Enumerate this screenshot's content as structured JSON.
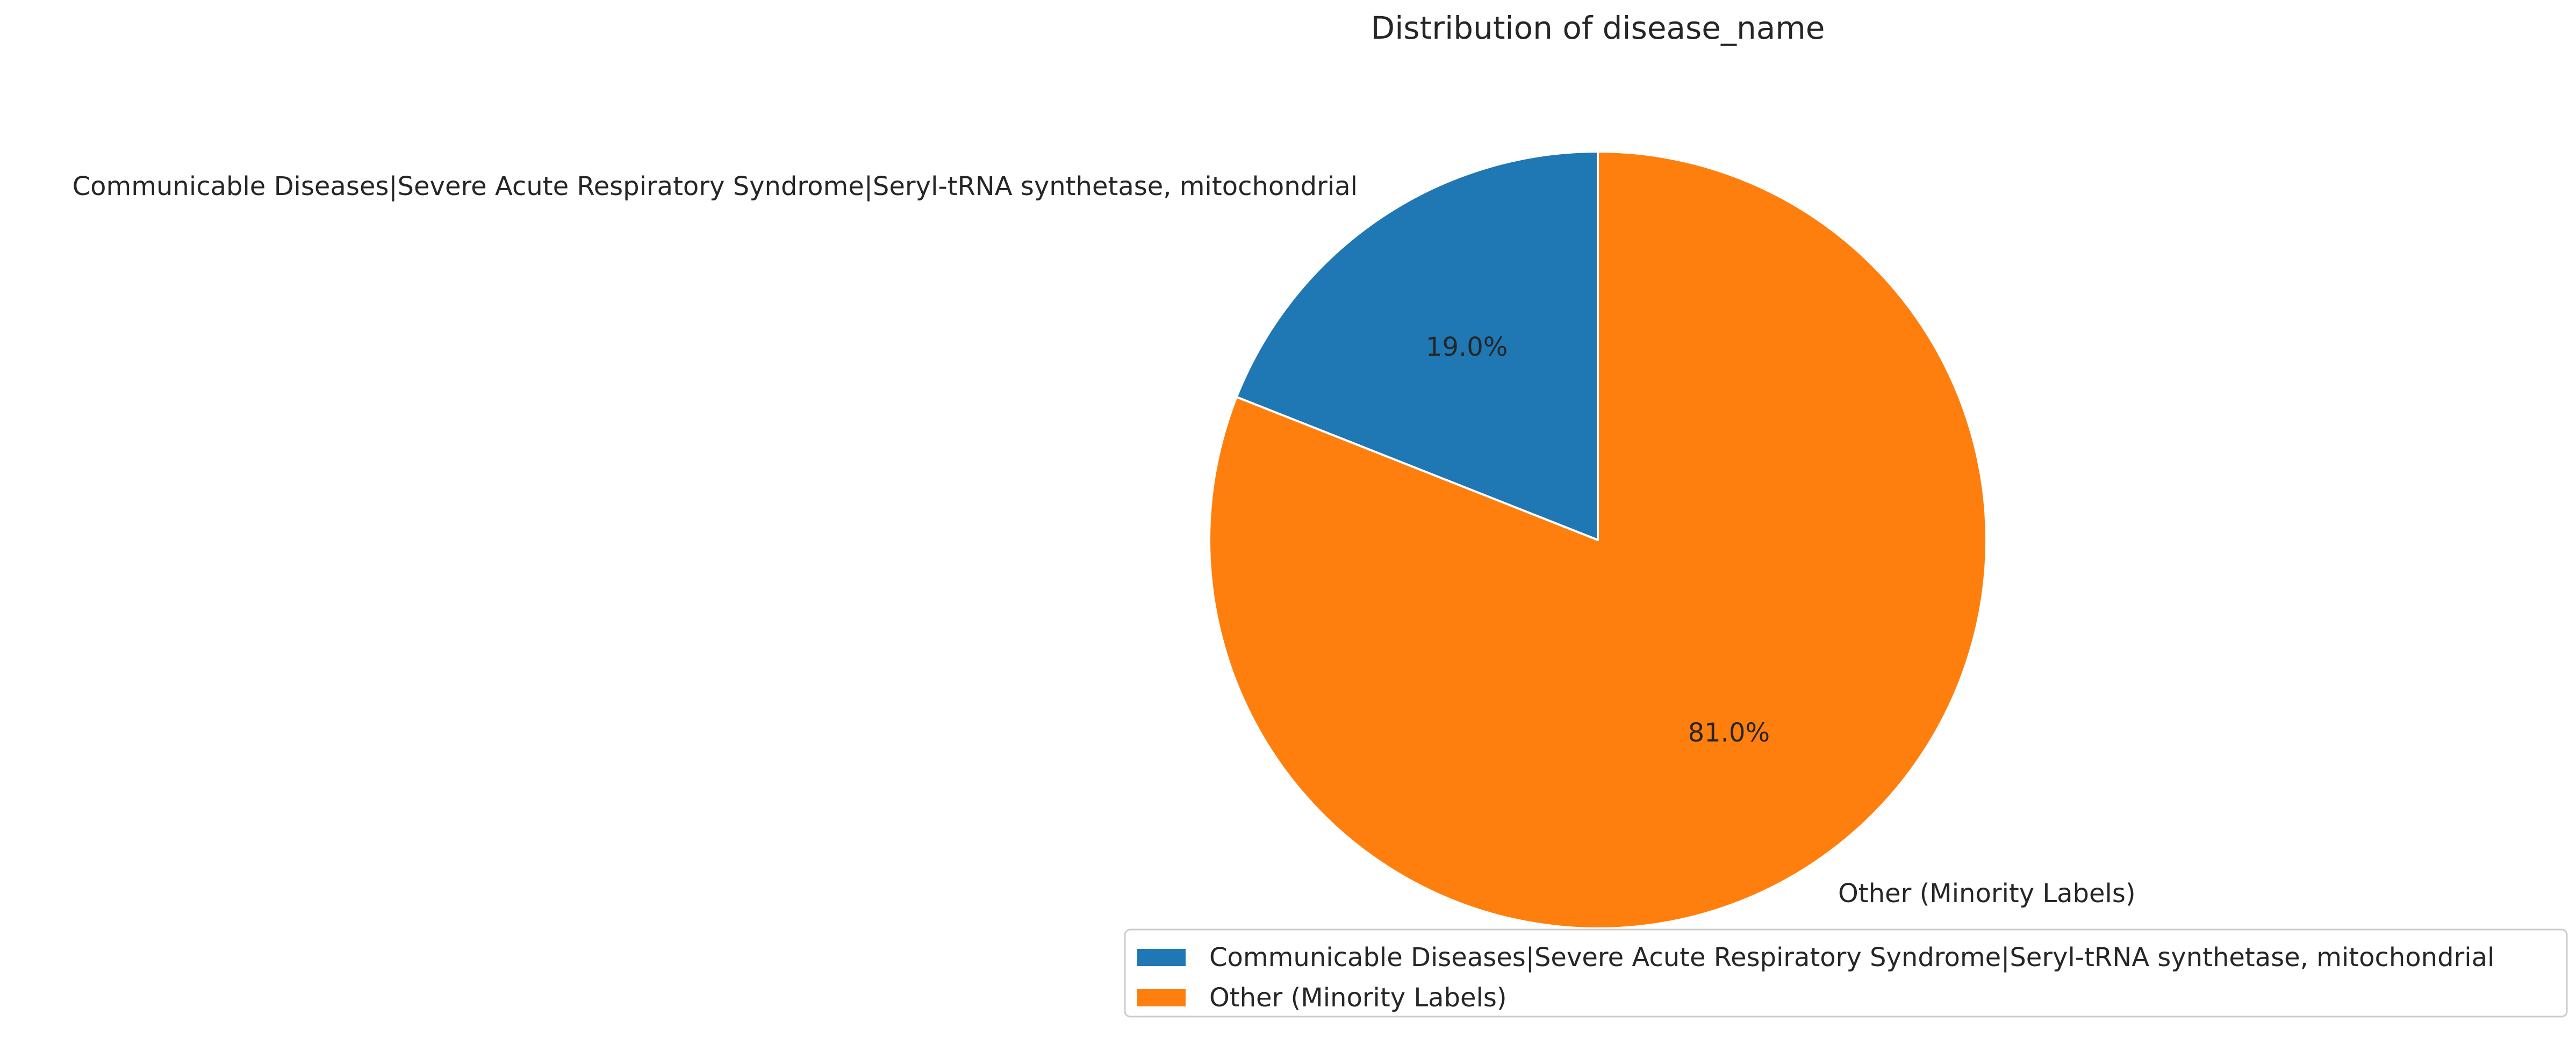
{
  "chart_data": {
    "type": "pie",
    "title": "Distribution of disease_name",
    "labels": [
      "Communicable Diseases|Severe Acute Respiratory Syndrome|Seryl-tRNA synthetase, mitochondrial",
      "Other (Minority Labels)"
    ],
    "values": [
      19.0,
      81.0
    ],
    "value_labels": [
      "19.0%",
      "81.0%"
    ],
    "colors": [
      "#1f77b4",
      "#ff7f0e"
    ],
    "start_angle_degrees": 90,
    "direction": "counterclockwise",
    "wedge_edge_color": "#ffffff",
    "legend": {
      "placement": "lower-right",
      "entries": [
        "Communicable Diseases|Severe Acute Respiratory Syndrome|Seryl-tRNA synthetase, mitochondrial",
        "Other (Minority Labels)"
      ]
    }
  }
}
